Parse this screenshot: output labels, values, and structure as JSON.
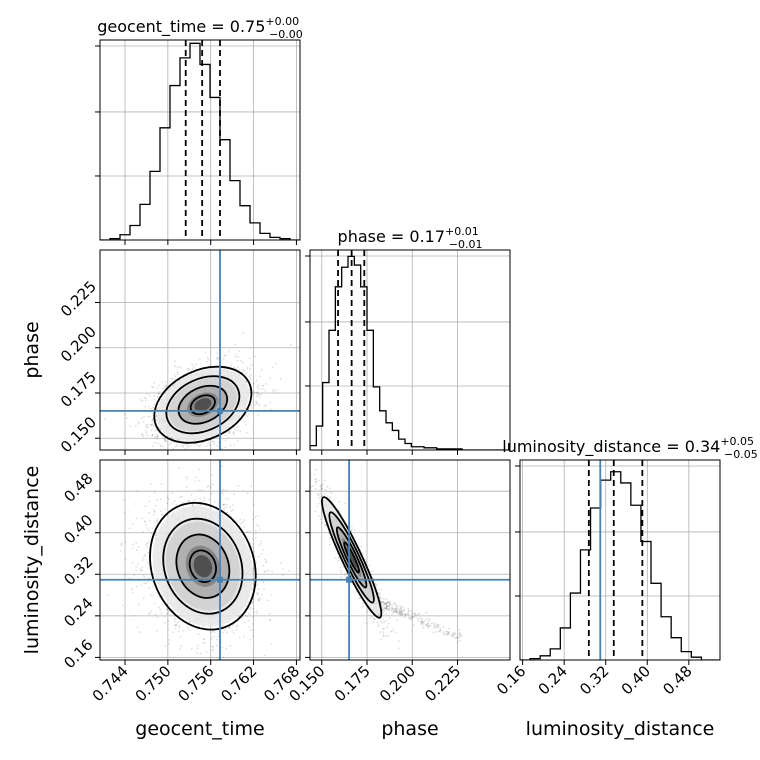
{
  "chart_data": {
    "type": "corner",
    "parameters": [
      "geocent_time",
      "phase",
      "luminosity_distance"
    ],
    "axis_labels": {
      "geocent_time": "geocent_time",
      "phase": "phase",
      "luminosity_distance": "luminosity_distance"
    },
    "ranges": {
      "geocent_time": [
        0.7405,
        0.7685
      ],
      "phase": [
        0.1435,
        0.254
      ],
      "luminosity_distance": [
        0.155,
        0.54
      ]
    },
    "ticks": {
      "geocent_time": {
        "values": [
          0.744,
          0.75,
          0.756,
          0.762,
          0.768
        ],
        "labels": [
          "0.744",
          "0.750",
          "0.756",
          "0.762",
          "0.768"
        ]
      },
      "phase": {
        "values": [
          0.15,
          0.175,
          0.2,
          0.225
        ],
        "labels": [
          "0.150",
          "0.175",
          "0.200",
          "0.225"
        ]
      },
      "luminosity_distance": {
        "values": [
          0.16,
          0.24,
          0.32,
          0.4,
          0.48
        ],
        "labels": [
          "0.16",
          "0.24",
          "0.32",
          "0.40",
          "0.48"
        ]
      }
    },
    "truths": {
      "geocent_time": 0.7573,
      "phase": 0.1651,
      "luminosity_distance": 0.3095
    },
    "titles": {
      "geocent_time": {
        "text": "geocent_time = 0.75",
        "plus": "+0.00",
        "minus": "−0.00"
      },
      "phase": {
        "text": "phase = 0.17",
        "plus": "+0.01",
        "minus": "−0.01"
      },
      "luminosity_distance": {
        "text": "luminosity_distance = 0.34",
        "plus": "+0.05",
        "minus": "−0.05"
      }
    },
    "quantiles": {
      "geocent_time": [
        0.7525,
        0.7548,
        0.7573
      ],
      "phase": [
        0.159,
        0.1665,
        0.1735
      ],
      "luminosity_distance": [
        0.2875,
        0.3355,
        0.3905
      ]
    },
    "histograms": {
      "geocent_time": {
        "edges": [
          0.7405,
          0.7419,
          0.7433,
          0.7447,
          0.7461,
          0.7475,
          0.7489,
          0.7503,
          0.7517,
          0.7531,
          0.7545,
          0.7559,
          0.7573,
          0.7587,
          0.7601,
          0.7615,
          0.7629,
          0.7643,
          0.7657,
          0.7671,
          0.7685
        ],
        "counts": [
          0,
          1,
          4,
          11,
          27,
          52,
          85,
          117,
          138,
          149,
          133,
          108,
          76,
          45,
          26,
          13,
          5,
          2,
          1,
          0
        ],
        "ymax": 150
      },
      "phase": {
        "edges": [
          0.1435,
          0.147,
          0.1505,
          0.154,
          0.1575,
          0.161,
          0.1645,
          0.168,
          0.1715,
          0.175,
          0.1785,
          0.182,
          0.1855,
          0.189,
          0.1925,
          0.196,
          0.1995,
          0.2065,
          0.2135,
          0.2205,
          0.2275,
          0.254
        ],
        "counts": [
          4,
          22,
          62,
          110,
          150,
          168,
          178,
          170,
          150,
          110,
          58,
          36,
          25,
          18,
          10,
          6,
          3,
          2,
          1,
          1,
          0
        ],
        "ymax": 182
      },
      "luminosity_distance": {
        "edges": [
          0.155,
          0.1744,
          0.1938,
          0.2132,
          0.2326,
          0.252,
          0.2714,
          0.2908,
          0.3102,
          0.3296,
          0.349,
          0.3684,
          0.3878,
          0.4072,
          0.4266,
          0.446,
          0.4654,
          0.4848,
          0.5042,
          0.5236,
          0.54
        ],
        "counts": [
          0,
          1,
          3,
          8,
          23,
          48,
          79,
          109,
          129,
          135,
          127,
          111,
          85,
          55,
          31,
          16,
          6,
          2,
          0,
          0
        ],
        "ymax": 142
      }
    },
    "joint": {
      "phase_vs_geocent_time": {
        "x": "geocent_time",
        "y": "phase",
        "mean": [
          0.7549,
          0.1685
        ],
        "sigma": [
          0.0034,
          0.0105
        ],
        "rho": 0.3,
        "n_points": 2400
      },
      "luminosity_distance_vs_geocent_time": {
        "x": "geocent_time",
        "y": "luminosity_distance",
        "mean": [
          0.7549,
          0.3355
        ],
        "sigma": [
          0.0037,
          0.061
        ],
        "rho": -0.15,
        "n_points": 2400
      },
      "luminosity_distance_vs_phase": {
        "x": "phase",
        "y": "luminosity_distance",
        "mean": [
          0.1665,
          0.3525
        ],
        "sigma": [
          0.0082,
          0.058
        ],
        "rho": -0.93,
        "n_points": 1500,
        "tail": {
          "from": [
            0.178,
            0.272
          ],
          "to": [
            0.226,
            0.198
          ]
        }
      }
    },
    "contour_levels_sigma": [
      0.5,
      1.0,
      1.5,
      2.0
    ],
    "colors": {
      "truth": "#4682b4",
      "grid": "#b0b0b0",
      "samples": "#6f6f6f",
      "lines": "#000000"
    },
    "grid": true
  }
}
